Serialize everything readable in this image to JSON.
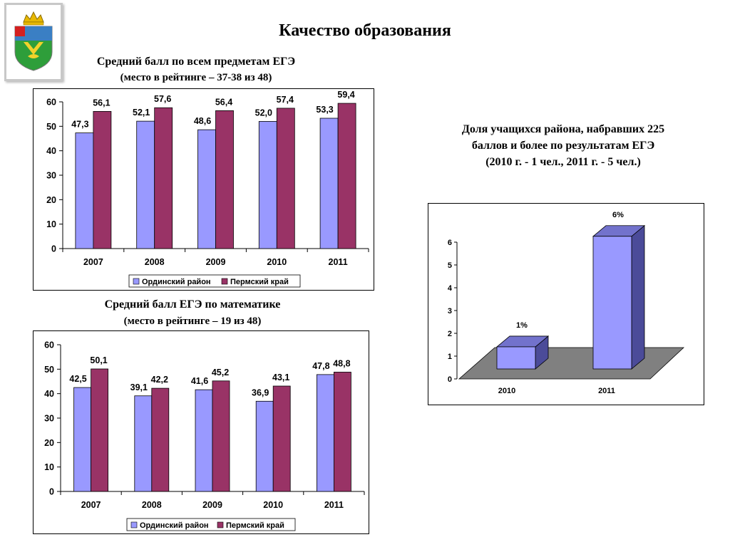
{
  "page_title": "Качество образования",
  "chart_data": [
    {
      "type": "bar",
      "title": "Средний балл по всем предметам ЕГЭ",
      "subtitle": "(место в рейтинге – 37-38  из 48)",
      "categories": [
        "2007",
        "2008",
        "2009",
        "2010",
        "2011"
      ],
      "series": [
        {
          "name": "Ординский район",
          "values": [
            47.3,
            52.1,
            48.6,
            52.0,
            53.3
          ],
          "labels": [
            "47,3",
            "52,1",
            "48,6",
            "52,0",
            "53,3"
          ],
          "color": "#9999ff"
        },
        {
          "name": "Пермский край",
          "values": [
            56.1,
            57.6,
            56.4,
            57.4,
            59.4
          ],
          "labels": [
            "56,1",
            "57,6",
            "56,4",
            "57,4",
            "59,4"
          ],
          "color": "#993366"
        }
      ],
      "ylim": [
        0,
        60
      ],
      "yticks": [
        0,
        10,
        20,
        30,
        40,
        50,
        60
      ],
      "legend": "bottom",
      "grid": false
    },
    {
      "type": "bar",
      "title": "Средний балл ЕГЭ по математике",
      "subtitle": "(место в рейтинге – 19 из 48)",
      "categories": [
        "2007",
        "2008",
        "2009",
        "2010",
        "2011"
      ],
      "series": [
        {
          "name": "Ординский район",
          "values": [
            42.5,
            39.1,
            41.6,
            36.9,
            47.8
          ],
          "labels": [
            "42,5",
            "39,1",
            "41,6",
            "36,9",
            "47,8"
          ],
          "color": "#9999ff"
        },
        {
          "name": "Пермский край",
          "values": [
            50.1,
            42.2,
            45.2,
            43.1,
            48.8
          ],
          "labels": [
            "50,1",
            "42,2",
            "45,2",
            "43,1",
            "48,8"
          ],
          "color": "#993366"
        }
      ],
      "ylim": [
        0,
        60
      ],
      "yticks": [
        0,
        10,
        20,
        30,
        40,
        50,
        60
      ],
      "legend": "bottom",
      "grid": false
    },
    {
      "type": "bar",
      "style": "3d",
      "title_lines": [
        "Доля учащихся района, набравших 225",
        "баллов и более по результатам ЕГЭ",
        "(2010 г. - 1 чел., 2011 г. - 5 чел.)"
      ],
      "categories": [
        "2010",
        "2011"
      ],
      "values": [
        1,
        6
      ],
      "labels": [
        "1%",
        "6%"
      ],
      "ylim": [
        0,
        6
      ],
      "yticks": [
        0,
        1,
        2,
        3,
        4,
        5,
        6
      ],
      "bar_color": "#9999ff",
      "floor_color": "#808080",
      "grid": false
    }
  ]
}
